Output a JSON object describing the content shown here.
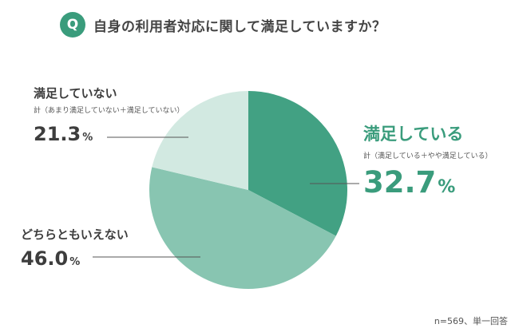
{
  "header": {
    "badge": "Q",
    "question": "自身の利用者対応に関して満足していますか？"
  },
  "colors": {
    "accent": "#3a9c7c",
    "satisfied": "#42a183",
    "neutral": "#88c5b1",
    "unsatisfied": "#d2e9e1",
    "leader_line": "#555555"
  },
  "chart_data": {
    "type": "pie",
    "start_angle_deg": 0,
    "direction": "clockwise",
    "slices": [
      {
        "key": "satisfied",
        "label": "満足している",
        "sublabel": "計（満足している＋やや満足している）",
        "value": 32.7,
        "value_text": "32.7",
        "unit": "%"
      },
      {
        "key": "neutral",
        "label": "どちらともいえない",
        "sublabel": "",
        "value": 46.0,
        "value_text": "46.0",
        "unit": "%"
      },
      {
        "key": "unsatisfied",
        "label": "満足していない",
        "sublabel": "計（あまり満足していない＋満足していない）",
        "value": 21.3,
        "value_text": "21.3",
        "unit": "%"
      }
    ]
  },
  "footnote": "n=569、単一回答"
}
